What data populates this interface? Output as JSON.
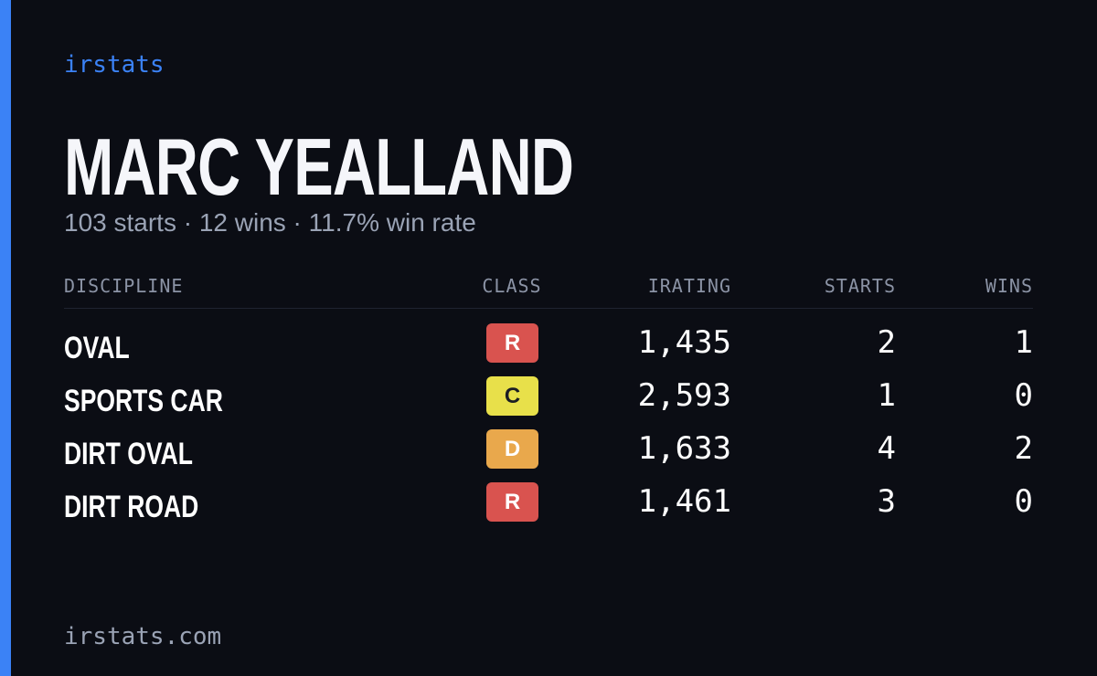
{
  "brand": "irstats",
  "driver": {
    "name": "MARC YEALLAND",
    "summary": "103 starts · 12 wins · 11.7% win rate"
  },
  "table": {
    "headers": [
      "DISCIPLINE",
      "CLASS",
      "IRATING",
      "STARTS",
      "WINS"
    ],
    "rows": [
      [
        "OVAL",
        "R",
        "1,435",
        "2",
        "1"
      ],
      [
        "SPORTS CAR",
        "C",
        "2,593",
        "1",
        "0"
      ],
      [
        "DIRT OVAL",
        "D",
        "1,633",
        "4",
        "2"
      ],
      [
        "DIRT ROAD",
        "R",
        "1,461",
        "3",
        "0"
      ]
    ]
  },
  "footer": "irstats.com"
}
